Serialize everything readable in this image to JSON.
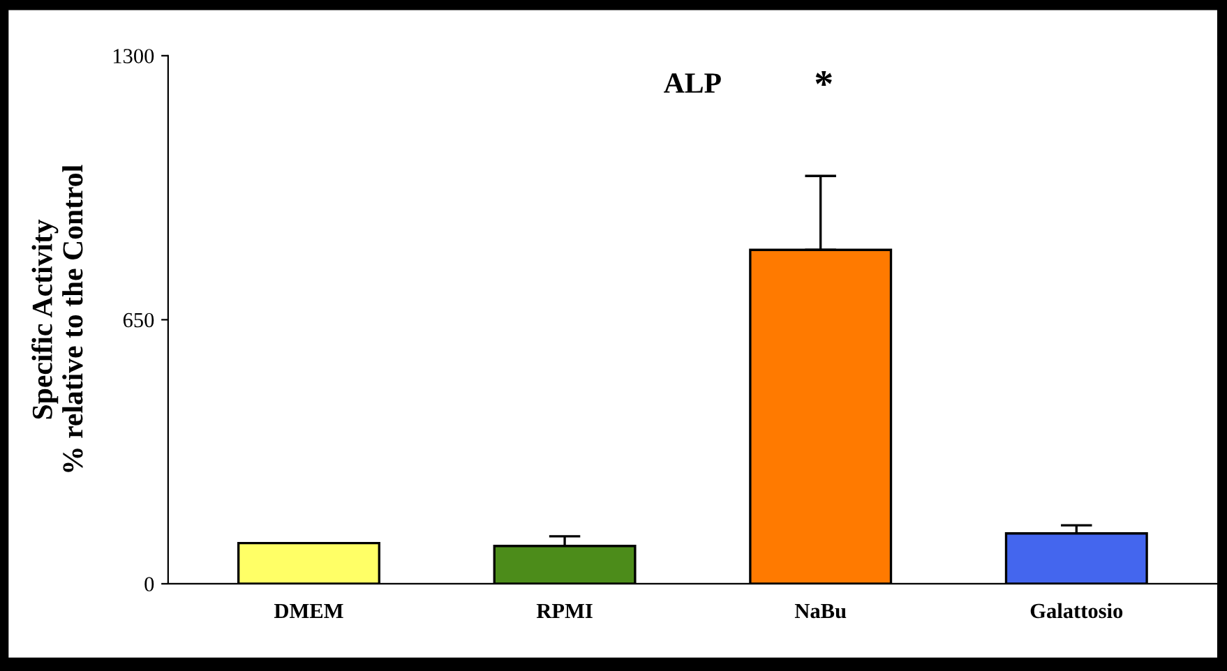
{
  "chart_data": {
    "type": "bar",
    "title": "ALP",
    "ylabel": "Specific Activity\n% relative to the Control",
    "categories": [
      "DMEM",
      "RPMI",
      "NaBu",
      "Galattosio"
    ],
    "values": [
      100,
      93,
      822,
      124
    ],
    "errors": [
      null,
      [
        93,
        117
      ],
      [
        822,
        1004
      ],
      [
        124,
        144
      ]
    ],
    "colors": [
      "#ffff66",
      "#4c8c1a",
      "#ff7a00",
      "#4466ee"
    ],
    "ylim": [
      0,
      1300
    ],
    "yticks": [
      0,
      650,
      1300
    ],
    "annotations": [
      "*"
    ],
    "grid": false,
    "legend": false
  }
}
